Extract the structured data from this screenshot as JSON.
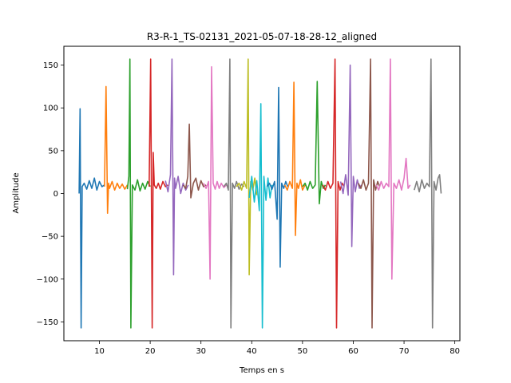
{
  "chart_data": {
    "type": "line",
    "title": "R3-R-1_TS-02131_2021-05-07-18-28-12_aligned",
    "xlabel": "Temps en s",
    "ylabel": "Amplitude",
    "xlim": [
      3,
      81
    ],
    "ylim": [
      -172,
      172
    ],
    "xticks": [
      10,
      20,
      30,
      40,
      50,
      60,
      70,
      80
    ],
    "yticks": [
      -150,
      -100,
      -50,
      0,
      50,
      100,
      150
    ],
    "grid": false,
    "legend": "none",
    "colors": [
      "#1f77b4",
      "#ff7f0e",
      "#2ca02c",
      "#d62728",
      "#9467bd",
      "#8c564b",
      "#e377c2",
      "#7f7f7f",
      "#bcbd22",
      "#17becf"
    ],
    "series": [
      {
        "x": [
          6.0,
          6.2,
          6.4,
          6.6,
          7.0,
          7.5,
          8.0,
          8.5,
          9.0,
          9.5,
          10.0,
          10.5,
          11.0
        ],
        "values": [
          0,
          99,
          -157,
          8,
          12,
          5,
          15,
          6,
          18,
          4,
          14,
          8,
          10
        ]
      },
      {
        "x": [
          11.0,
          11.3,
          11.6,
          11.8,
          12.0,
          12.5,
          13.0,
          13.5,
          14.0,
          14.5,
          15.0,
          15.5
        ],
        "values": [
          8,
          125,
          -23,
          12,
          6,
          14,
          4,
          12,
          6,
          11,
          5,
          10
        ]
      },
      {
        "x": [
          15.5,
          15.8,
          16.0,
          16.2,
          16.5,
          17.0,
          17.5,
          18.0,
          18.5,
          19.0,
          19.5,
          20.0
        ],
        "values": [
          5,
          20,
          157,
          -157,
          10,
          4,
          16,
          3,
          12,
          5,
          14,
          8
        ]
      },
      {
        "x": [
          19.8,
          20.1,
          20.4,
          20.6,
          20.8,
          21.2,
          21.6,
          22.0,
          22.5,
          23.0,
          23.5
        ],
        "values": [
          8,
          157,
          -157,
          48,
          10,
          6,
          12,
          5,
          14,
          8,
          10
        ]
      },
      {
        "x": [
          23.0,
          23.5,
          24.0,
          24.3,
          24.6,
          24.8,
          25.0,
          25.5,
          26.0,
          26.5,
          27.0,
          27.5
        ],
        "values": [
          15,
          2,
          22,
          157,
          -95,
          18,
          6,
          20,
          0,
          12,
          4,
          10
        ]
      },
      {
        "x": [
          26.5,
          27.0,
          27.4,
          27.7,
          28.0,
          28.5,
          29.0,
          29.5,
          30.0,
          30.5,
          31.0
        ],
        "values": [
          10,
          6,
          20,
          81,
          -5,
          12,
          18,
          4,
          15,
          8,
          10
        ]
      },
      {
        "x": [
          30.5,
          31.0,
          31.5,
          31.8,
          32.1,
          32.4,
          32.8,
          33.2,
          33.6,
          34.0,
          34.5,
          35.0
        ],
        "values": [
          12,
          6,
          14,
          -100,
          148,
          12,
          5,
          14,
          6,
          12,
          7,
          10
        ]
      },
      {
        "x": [
          34.5,
          35.0,
          35.4,
          35.7,
          35.9,
          36.2,
          36.6,
          37.0,
          37.5,
          38.0,
          38.5
        ],
        "values": [
          8,
          12,
          4,
          157,
          -157,
          12,
          6,
          14,
          5,
          11,
          8
        ]
      },
      {
        "x": [
          37.0,
          37.5,
          38.0,
          38.5,
          39.0,
          39.3,
          39.5,
          39.8,
          40.2,
          40.6,
          41.0
        ],
        "values": [
          8,
          12,
          4,
          14,
          6,
          157,
          -95,
          14,
          4,
          18,
          -2
        ]
      },
      {
        "x": [
          39.5,
          40.0,
          40.5,
          41.0,
          41.5,
          41.8,
          42.1,
          42.4,
          42.8,
          43.2,
          43.6,
          44.0
        ],
        "values": [
          -5,
          20,
          -10,
          15,
          -20,
          105,
          -157,
          20,
          -8,
          18,
          -5,
          10
        ]
      },
      {
        "x": [
          43.0,
          43.5,
          44.0,
          44.5,
          45.0,
          45.3,
          45.6,
          45.9,
          46.3,
          46.7,
          47.1
        ],
        "values": [
          8,
          12,
          5,
          14,
          -30,
          124,
          -86,
          12,
          6,
          14,
          8
        ]
      },
      {
        "x": [
          46.5,
          47.0,
          47.5,
          48.0,
          48.3,
          48.6,
          48.9,
          49.2,
          49.6,
          50.0,
          50.5
        ],
        "values": [
          10,
          4,
          14,
          6,
          130,
          -49,
          12,
          6,
          16,
          4,
          10
        ]
      },
      {
        "x": [
          50.0,
          50.5,
          51.0,
          51.5,
          52.0,
          52.5,
          52.9,
          53.3,
          53.7,
          54.1,
          54.5
        ],
        "values": [
          8,
          12,
          4,
          14,
          6,
          10,
          131,
          -12,
          14,
          6,
          10
        ]
      },
      {
        "x": [
          54.0,
          54.5,
          55.0,
          55.5,
          56.0,
          56.4,
          56.7,
          57.0,
          57.4,
          57.8,
          58.2
        ],
        "values": [
          10,
          4,
          14,
          6,
          12,
          157,
          -157,
          14,
          4,
          12,
          8
        ]
      },
      {
        "x": [
          57.5,
          58.0,
          58.5,
          59.0,
          59.4,
          59.7,
          60.0,
          60.4,
          60.8,
          61.2,
          61.6
        ],
        "values": [
          14,
          0,
          22,
          -2,
          150,
          -62,
          20,
          2,
          16,
          6,
          10
        ]
      },
      {
        "x": [
          61.0,
          61.5,
          62.0,
          62.5,
          63.0,
          63.4,
          63.7,
          64.0,
          64.4,
          64.8,
          65.2
        ],
        "values": [
          12,
          6,
          16,
          4,
          12,
          157,
          -157,
          16,
          4,
          14,
          8
        ]
      },
      {
        "x": [
          64.5,
          65.0,
          65.5,
          66.0,
          66.5,
          67.0,
          67.3,
          67.6,
          68.0,
          68.5,
          69.0,
          69.5,
          70.0,
          70.4,
          70.8,
          71.2
        ],
        "values": [
          10,
          4,
          14,
          6,
          12,
          8,
          157,
          -100,
          12,
          6,
          16,
          4,
          18,
          41,
          6,
          10
        ]
      },
      {
        "x": [
          72.0,
          72.5,
          73.0,
          73.5,
          74.0,
          74.5,
          75.0,
          75.3,
          75.6,
          75.9,
          76.3,
          76.7,
          77.0,
          77.3
        ],
        "values": [
          4,
          14,
          2,
          16,
          6,
          12,
          8,
          157,
          -157,
          14,
          4,
          18,
          22,
          0
        ]
      }
    ]
  }
}
